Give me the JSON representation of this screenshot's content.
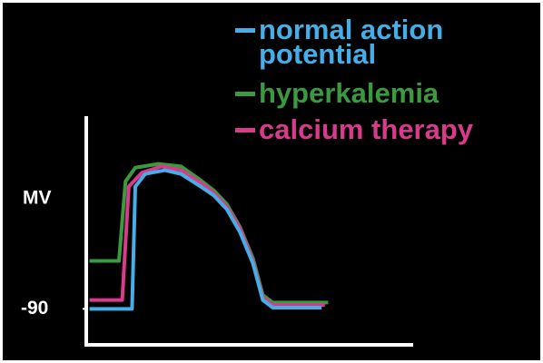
{
  "chart_data": {
    "type": "line",
    "ylabel": "MV",
    "ylim": [
      -120,
      60
    ],
    "yticks": [
      -90
    ],
    "xlim": [
      0,
      100
    ],
    "xticks": [],
    "legend": "top-right",
    "series": [
      {
        "name": "normal action potential",
        "color": "#45aee6",
        "x": [
          1,
          14,
          15,
          18,
          24,
          29,
          35,
          39,
          43,
          47,
          51,
          54,
          57,
          72
        ],
        "values": [
          -90,
          -90,
          7,
          17,
          20,
          17,
          7,
          0,
          -11,
          -29,
          -54,
          -83,
          -89,
          -89
        ]
      },
      {
        "name": "hyperkalemia",
        "color": "#3a9a3e",
        "x": [
          1,
          10,
          12,
          15,
          22,
          29,
          35,
          39,
          43,
          47,
          51,
          54,
          57,
          74
        ],
        "values": [
          -52,
          -52,
          11,
          22,
          25,
          23,
          12,
          4,
          -7,
          -25,
          -50,
          -79,
          -85,
          -85
        ]
      },
      {
        "name": "calcium therapy",
        "color": "#d83a8c",
        "x": [
          1,
          11,
          13,
          17,
          23,
          29,
          35,
          39,
          43,
          47,
          51,
          54,
          57,
          73
        ],
        "values": [
          -83,
          -83,
          7,
          18,
          23,
          20,
          10,
          2,
          -9,
          -26,
          -52,
          -81,
          -87,
          -87
        ]
      }
    ]
  }
}
